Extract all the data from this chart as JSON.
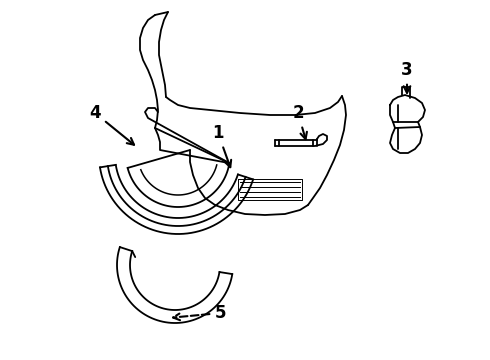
{
  "background_color": "#ffffff",
  "line_color": "#000000",
  "figsize": [
    4.9,
    3.6
  ],
  "dpi": 100
}
